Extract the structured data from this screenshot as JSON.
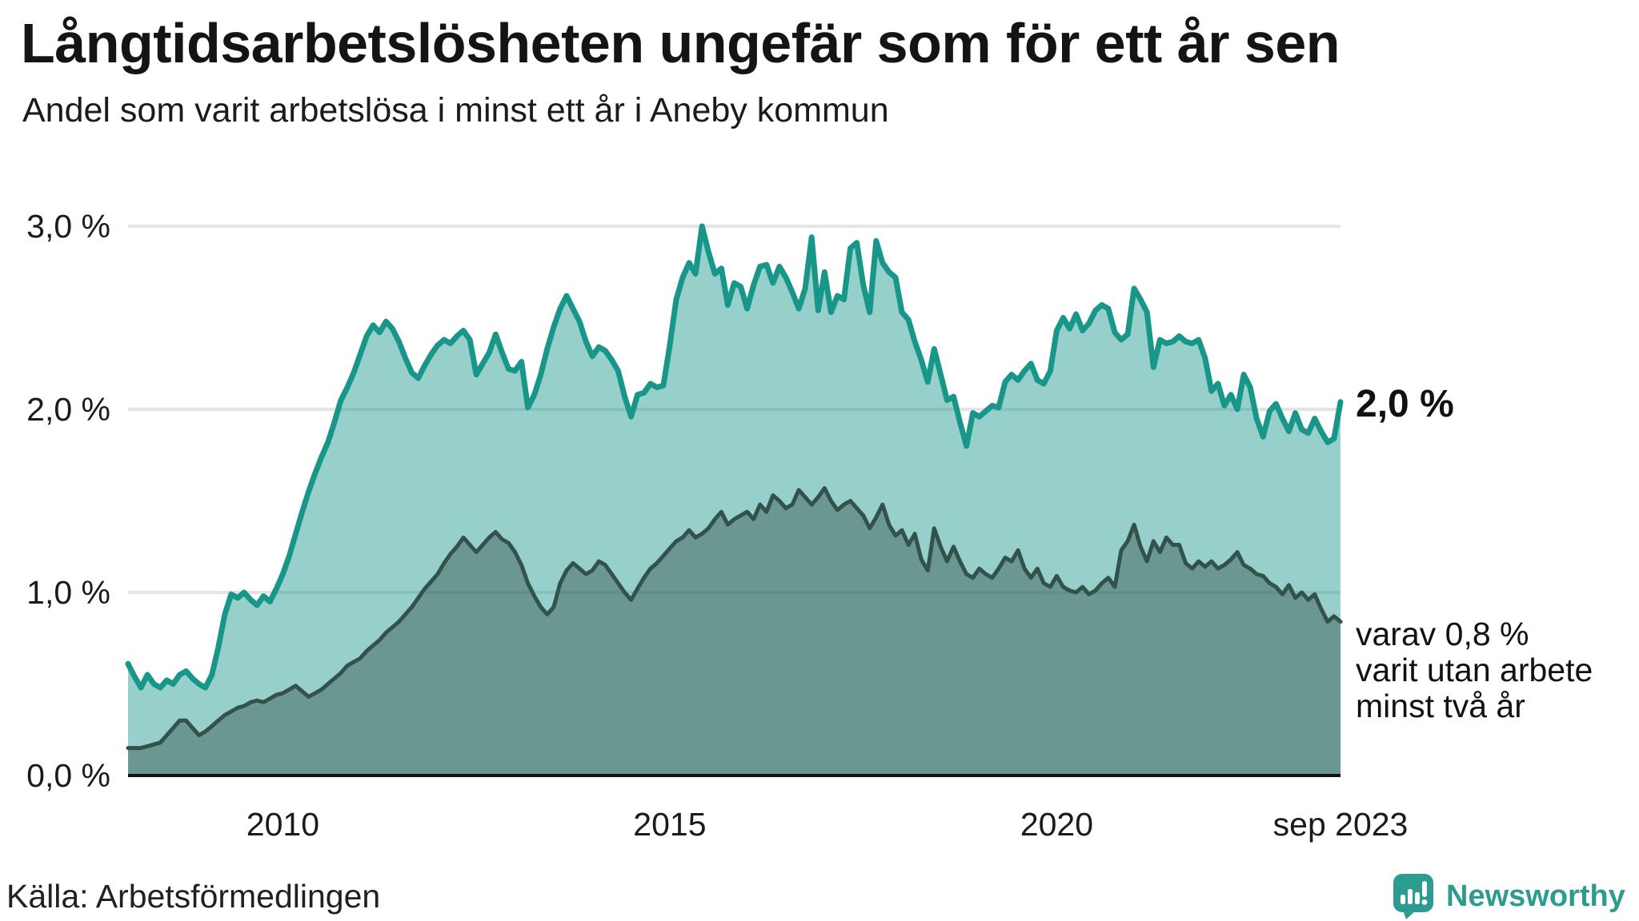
{
  "header": {
    "title": "Långtidsarbetslösheten ungefär som för ett år sen",
    "subtitle": "Andel som varit arbetslösa i minst ett år i Aneby kommun"
  },
  "chart_data": {
    "type": "area",
    "title": "Andel som varit arbetslösa i minst ett år i Aneby kommun",
    "x_start": "2008-01",
    "x_end": "2023-09",
    "x_unit": "month",
    "ylim": [
      0,
      3.2
    ],
    "grid": "horizontal",
    "y_ticks": [
      {
        "label": "3,0 %",
        "value": 3
      },
      {
        "label": "2,0 %",
        "value": 2
      },
      {
        "label": "1,0 %",
        "value": 1
      },
      {
        "label": "0,0 %",
        "value": 0
      }
    ],
    "x_ticks": [
      {
        "label": "2010",
        "month_index": 24
      },
      {
        "label": "2015",
        "month_index": 84
      },
      {
        "label": "2020",
        "month_index": 144
      },
      {
        "label": "sep 2023",
        "month_index": 188
      }
    ],
    "series": [
      {
        "name": "Andel arbetslösa minst ett år",
        "values": [
          0.61,
          0.54,
          0.48,
          0.55,
          0.5,
          0.48,
          0.52,
          0.5,
          0.55,
          0.57,
          0.53,
          0.5,
          0.48,
          0.55,
          0.7,
          0.88,
          0.99,
          0.97,
          1.0,
          0.96,
          0.93,
          0.98,
          0.95,
          1.02,
          1.1,
          1.2,
          1.32,
          1.44,
          1.55,
          1.65,
          1.74,
          1.82,
          1.93,
          2.05,
          2.12,
          2.2,
          2.3,
          2.4,
          2.46,
          2.42,
          2.48,
          2.44,
          2.37,
          2.28,
          2.2,
          2.17,
          2.24,
          2.3,
          2.35,
          2.38,
          2.36,
          2.4,
          2.43,
          2.38,
          2.19,
          2.25,
          2.31,
          2.41,
          2.31,
          2.22,
          2.21,
          2.26,
          2.01,
          2.08,
          2.19,
          2.33,
          2.45,
          2.55,
          2.62,
          2.55,
          2.48,
          2.37,
          2.29,
          2.34,
          2.32,
          2.27,
          2.21,
          2.07,
          1.96,
          2.08,
          2.09,
          2.14,
          2.12,
          2.13,
          2.35,
          2.6,
          2.72,
          2.8,
          2.74,
          3.0,
          2.86,
          2.74,
          2.77,
          2.57,
          2.69,
          2.67,
          2.55,
          2.68,
          2.78,
          2.79,
          2.69,
          2.78,
          2.72,
          2.64,
          2.55,
          2.66,
          2.94,
          2.54,
          2.75,
          2.53,
          2.62,
          2.6,
          2.88,
          2.91,
          2.68,
          2.53,
          2.92,
          2.8,
          2.75,
          2.72,
          2.53,
          2.49,
          2.37,
          2.27,
          2.15,
          2.33,
          2.19,
          2.05,
          2.07,
          1.93,
          1.8,
          1.98,
          1.96,
          1.99,
          2.02,
          2.01,
          2.15,
          2.19,
          2.16,
          2.21,
          2.25,
          2.16,
          2.14,
          2.21,
          2.43,
          2.5,
          2.44,
          2.52,
          2.43,
          2.47,
          2.54,
          2.57,
          2.55,
          2.42,
          2.38,
          2.41,
          2.66,
          2.6,
          2.53,
          2.23,
          2.38,
          2.36,
          2.37,
          2.4,
          2.37,
          2.36,
          2.38,
          2.28,
          2.1,
          2.14,
          2.02,
          2.08,
          2.0,
          2.19,
          2.12,
          1.95,
          1.85,
          1.99,
          2.03,
          1.95,
          1.88,
          1.98,
          1.89,
          1.87,
          1.95,
          1.88,
          1.82,
          1.84,
          2.04
        ]
      },
      {
        "name": "varav utan arbete minst två år",
        "values": [
          0.15,
          0.15,
          0.15,
          0.16,
          0.17,
          0.18,
          0.22,
          0.26,
          0.3,
          0.3,
          0.26,
          0.22,
          0.24,
          0.27,
          0.3,
          0.33,
          0.35,
          0.37,
          0.38,
          0.4,
          0.41,
          0.4,
          0.42,
          0.44,
          0.45,
          0.47,
          0.49,
          0.46,
          0.43,
          0.45,
          0.47,
          0.5,
          0.53,
          0.56,
          0.6,
          0.62,
          0.64,
          0.68,
          0.71,
          0.74,
          0.78,
          0.81,
          0.84,
          0.88,
          0.92,
          0.97,
          1.02,
          1.06,
          1.1,
          1.16,
          1.21,
          1.25,
          1.3,
          1.26,
          1.22,
          1.26,
          1.3,
          1.33,
          1.29,
          1.27,
          1.22,
          1.15,
          1.05,
          0.98,
          0.92,
          0.88,
          0.92,
          1.05,
          1.12,
          1.16,
          1.13,
          1.1,
          1.12,
          1.17,
          1.15,
          1.1,
          1.05,
          1.0,
          0.96,
          1.02,
          1.08,
          1.13,
          1.16,
          1.2,
          1.24,
          1.28,
          1.3,
          1.34,
          1.3,
          1.32,
          1.35,
          1.4,
          1.44,
          1.37,
          1.4,
          1.42,
          1.44,
          1.4,
          1.48,
          1.44,
          1.53,
          1.5,
          1.46,
          1.48,
          1.56,
          1.52,
          1.48,
          1.52,
          1.57,
          1.5,
          1.45,
          1.48,
          1.5,
          1.46,
          1.42,
          1.35,
          1.41,
          1.48,
          1.37,
          1.31,
          1.34,
          1.26,
          1.32,
          1.18,
          1.12,
          1.35,
          1.25,
          1.17,
          1.25,
          1.17,
          1.1,
          1.08,
          1.13,
          1.1,
          1.08,
          1.13,
          1.19,
          1.17,
          1.23,
          1.13,
          1.08,
          1.13,
          1.05,
          1.03,
          1.09,
          1.03,
          1.01,
          1.0,
          1.03,
          0.99,
          1.01,
          1.05,
          1.08,
          1.03,
          1.23,
          1.28,
          1.37,
          1.25,
          1.17,
          1.28,
          1.22,
          1.3,
          1.26,
          1.26,
          1.16,
          1.13,
          1.17,
          1.14,
          1.17,
          1.13,
          1.15,
          1.18,
          1.22,
          1.15,
          1.13,
          1.1,
          1.09,
          1.05,
          1.03,
          0.99,
          1.04,
          0.97,
          1.0,
          0.96,
          0.99,
          0.91,
          0.84,
          0.87,
          0.84
        ]
      }
    ],
    "legend_position": "annotations-right"
  },
  "annotations": {
    "latest_total": "2,0 %",
    "secondary_line1": "varav 0,8 %",
    "secondary_line2": "varit utan arbete",
    "secondary_line3": "minst två år"
  },
  "footer": {
    "source": "Källa: Arbetsförmedlingen",
    "brand": "Newsworthy"
  },
  "colors": {
    "series1_line": "#18968a",
    "series1_fill": "#18968a",
    "series1_fill_opacity": 0.45,
    "series2_line": "#33524c",
    "series2_fill": "#33524c",
    "series2_fill_opacity": 0.45,
    "gridline": "#e2e4e7",
    "axis_line": "#111111",
    "brand_teal": "#2d9c90",
    "text": "#141414"
  }
}
